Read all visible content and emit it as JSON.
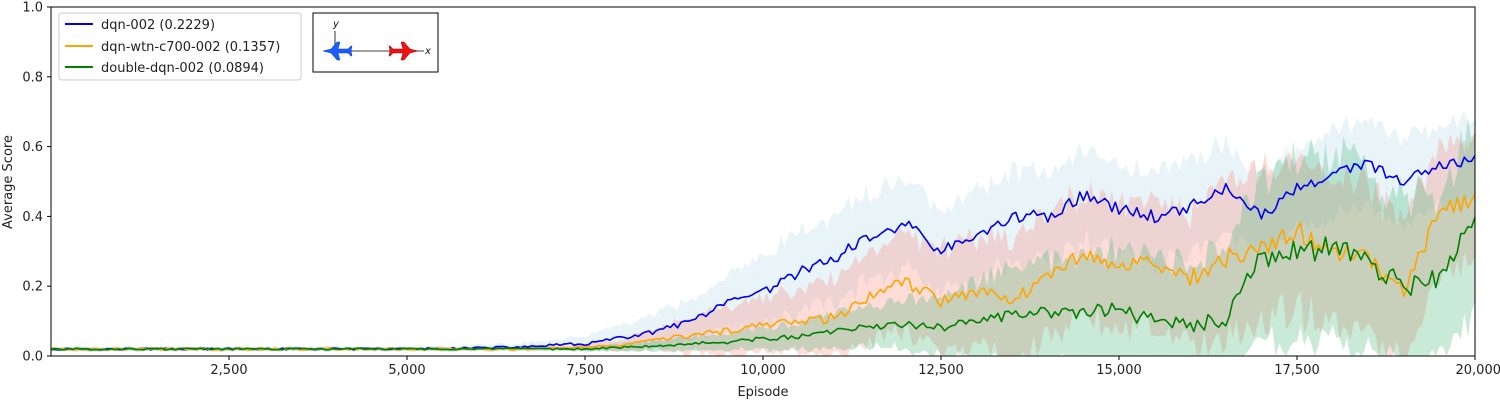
{
  "chart_data": {
    "type": "line",
    "xlabel": "Episode",
    "ylabel": "Average Score",
    "xlim": [
      0,
      20000
    ],
    "ylim": [
      0,
      1.0
    ],
    "xticks": [
      2500,
      5000,
      7500,
      10000,
      12500,
      15000,
      17500,
      20000
    ],
    "xtick_labels": [
      "2,500",
      "5,000",
      "7,500",
      "10,000",
      "12,500",
      "15,000",
      "17,500",
      "20,000"
    ],
    "yticks": [
      0.0,
      0.2,
      0.4,
      0.6,
      0.8,
      1.0
    ],
    "ytick_labels": [
      "0.0",
      "0.2",
      "0.4",
      "0.6",
      "0.8",
      "1.0"
    ],
    "grid": false,
    "legend_placement": "top-left",
    "inset_labels": {
      "y": "y",
      "x": "x"
    },
    "series": [
      {
        "name": "dqn-002 (0.2229)",
        "color": "#0000ee",
        "band_color": "#add8e6",
        "x": [
          0,
          2500,
          5000,
          6500,
          7500,
          8000,
          8500,
          9000,
          9500,
          10000,
          10500,
          11000,
          11500,
          12000,
          12500,
          13000,
          13500,
          14000,
          14500,
          15000,
          15500,
          16000,
          16500,
          17000,
          17500,
          18000,
          18500,
          19000,
          19500,
          20000
        ],
        "y": [
          0.02,
          0.02,
          0.02,
          0.025,
          0.035,
          0.05,
          0.07,
          0.1,
          0.15,
          0.18,
          0.24,
          0.28,
          0.34,
          0.38,
          0.3,
          0.34,
          0.4,
          0.4,
          0.46,
          0.42,
          0.4,
          0.43,
          0.48,
          0.4,
          0.48,
          0.52,
          0.55,
          0.5,
          0.54,
          0.56
        ],
        "band": [
          0.005,
          0.005,
          0.005,
          0.01,
          0.02,
          0.04,
          0.05,
          0.06,
          0.08,
          0.1,
          0.11,
          0.12,
          0.13,
          0.13,
          0.12,
          0.13,
          0.13,
          0.13,
          0.13,
          0.13,
          0.13,
          0.13,
          0.13,
          0.12,
          0.12,
          0.12,
          0.12,
          0.12,
          0.12,
          0.12
        ]
      },
      {
        "name": "dqn-wtn-c700-002 (0.1357)",
        "color": "#ffa500",
        "band_color": "#fa8072",
        "x": [
          0,
          2500,
          5000,
          6500,
          7500,
          8000,
          8500,
          9000,
          9500,
          10000,
          10500,
          11000,
          11500,
          12000,
          12500,
          13000,
          13500,
          14000,
          14500,
          15000,
          15500,
          16000,
          16500,
          17000,
          17500,
          18000,
          18500,
          19000,
          19500,
          20000
        ],
        "y": [
          0.02,
          0.02,
          0.02,
          0.02,
          0.025,
          0.03,
          0.045,
          0.06,
          0.07,
          0.09,
          0.1,
          0.11,
          0.17,
          0.21,
          0.16,
          0.19,
          0.17,
          0.22,
          0.3,
          0.26,
          0.27,
          0.22,
          0.28,
          0.3,
          0.36,
          0.3,
          0.28,
          0.18,
          0.42,
          0.45
        ],
        "band": [
          0.005,
          0.005,
          0.005,
          0.005,
          0.01,
          0.015,
          0.03,
          0.05,
          0.07,
          0.08,
          0.09,
          0.11,
          0.13,
          0.14,
          0.15,
          0.16,
          0.17,
          0.18,
          0.18,
          0.18,
          0.18,
          0.2,
          0.22,
          0.22,
          0.22,
          0.22,
          0.22,
          0.2,
          0.2,
          0.2
        ]
      },
      {
        "name": "double-dqn-002 (0.0894)",
        "color": "#008000",
        "band_color": "#3cb371",
        "x": [
          0,
          2500,
          5000,
          6500,
          7500,
          8000,
          8500,
          9000,
          9500,
          10000,
          10500,
          11000,
          11500,
          12000,
          12500,
          13000,
          13500,
          14000,
          14500,
          15000,
          15500,
          16000,
          16500,
          17000,
          17500,
          18000,
          18500,
          19000,
          19500,
          20000
        ],
        "y": [
          0.02,
          0.02,
          0.02,
          0.02,
          0.02,
          0.025,
          0.03,
          0.035,
          0.04,
          0.05,
          0.055,
          0.07,
          0.085,
          0.09,
          0.08,
          0.1,
          0.12,
          0.12,
          0.13,
          0.13,
          0.1,
          0.09,
          0.1,
          0.28,
          0.3,
          0.31,
          0.27,
          0.2,
          0.22,
          0.39
        ],
        "band": [
          0.005,
          0.005,
          0.005,
          0.005,
          0.005,
          0.01,
          0.015,
          0.02,
          0.025,
          0.03,
          0.04,
          0.05,
          0.06,
          0.07,
          0.09,
          0.11,
          0.13,
          0.15,
          0.16,
          0.17,
          0.17,
          0.18,
          0.2,
          0.24,
          0.26,
          0.27,
          0.26,
          0.25,
          0.25,
          0.27
        ]
      }
    ]
  }
}
